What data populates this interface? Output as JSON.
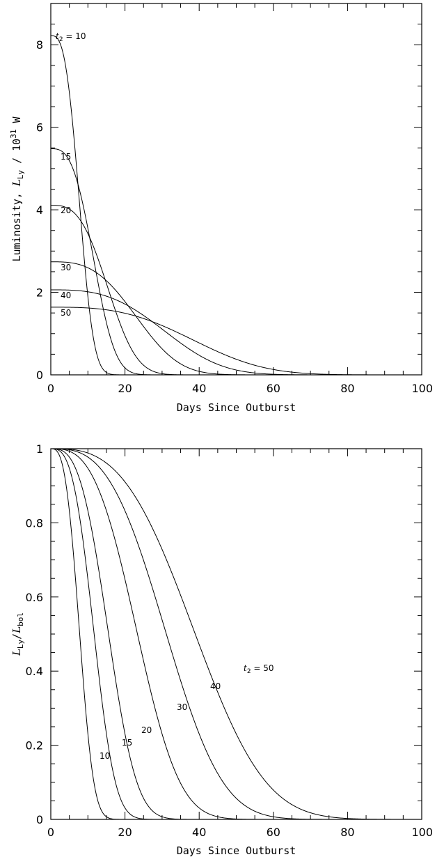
{
  "chart_data": [
    {
      "type": "line",
      "xlabel": "Days Since Outburst",
      "ylabel": {
        "prefix": "Luminosity, ",
        "symbol": "L",
        "subscript": "Ly",
        "unit_prefix": " / 10",
        "exponent": "31",
        "unit": " W"
      },
      "xlim": [
        0,
        100
      ],
      "ylim": [
        0,
        9
      ],
      "x_ticks": [
        "0",
        "20",
        "40",
        "60",
        "80",
        "100"
      ],
      "y_ticks": [
        "0",
        "2",
        "4",
        "6",
        "8"
      ],
      "grid": false,
      "series": [
        {
          "name": "10",
          "label_prefix": "t",
          "label_subscript": "2",
          "label_suffix": " = 10",
          "peak": 8.22,
          "t2": 10
        },
        {
          "name": "15",
          "label_prefix": "",
          "label_subscript": "",
          "label_suffix": "15",
          "peak": 5.48,
          "t2": 15
        },
        {
          "name": "20",
          "label_prefix": "",
          "label_subscript": "",
          "label_suffix": "20",
          "peak": 4.11,
          "t2": 20
        },
        {
          "name": "30",
          "label_prefix": "",
          "label_subscript": "",
          "label_suffix": "30",
          "peak": 2.74,
          "t2": 30
        },
        {
          "name": "40",
          "label_prefix": "",
          "label_subscript": "",
          "label_suffix": "40",
          "peak": 2.06,
          "t2": 40
        },
        {
          "name": "50",
          "label_prefix": "",
          "label_subscript": "",
          "label_suffix": "50",
          "peak": 1.64,
          "t2": 50
        }
      ]
    },
    {
      "type": "line",
      "xlabel": "Days Since Outburst",
      "ylabel": {
        "symbol1": "L",
        "subscript1": "Ly",
        "slash": "/",
        "symbol2": "L",
        "subscript2": "bol"
      },
      "xlim": [
        0,
        100
      ],
      "ylim": [
        0,
        1
      ],
      "x_ticks": [
        "0",
        "20",
        "40",
        "60",
        "80",
        "100"
      ],
      "y_ticks": [
        "0",
        "0.2",
        "0.4",
        "0.6",
        "0.8",
        "1"
      ],
      "grid": false,
      "series": [
        {
          "name": "10",
          "label_prefix": "",
          "label_subscript": "",
          "label_suffix": "10",
          "t2": 10
        },
        {
          "name": "15",
          "label_prefix": "",
          "label_subscript": "",
          "label_suffix": "15",
          "t2": 15
        },
        {
          "name": "20",
          "label_prefix": "",
          "label_subscript": "",
          "label_suffix": "20",
          "t2": 20
        },
        {
          "name": "30",
          "label_prefix": "",
          "label_subscript": "",
          "label_suffix": "30",
          "t2": 30
        },
        {
          "name": "40",
          "label_prefix": "",
          "label_subscript": "",
          "label_suffix": "40",
          "t2": 40
        },
        {
          "name": "50",
          "label_prefix": "t",
          "label_subscript": "2",
          "label_suffix": " = 50",
          "t2": 50
        }
      ]
    }
  ]
}
